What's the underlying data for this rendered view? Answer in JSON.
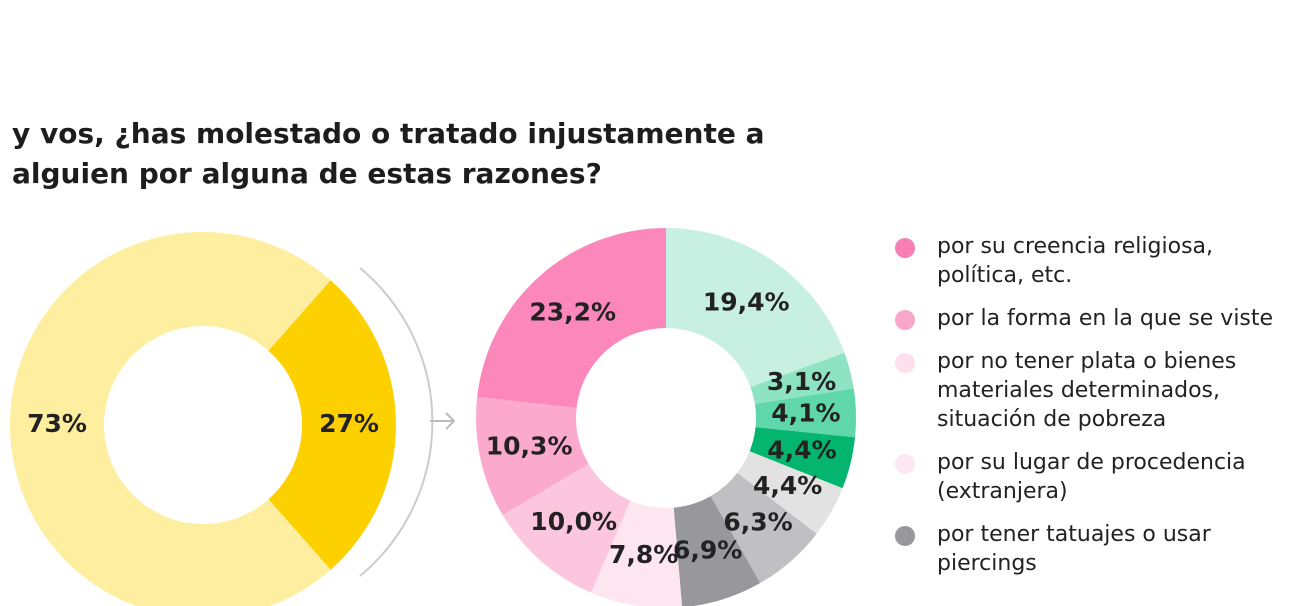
{
  "chart_data": [
    {
      "type": "pie",
      "title": "y vos, ¿has molestado o tratado injustamente a alguien por alguna de estas razones?",
      "values": [
        27,
        73
      ],
      "value_labels": [
        "27%",
        "73%"
      ],
      "colors": [
        "#fdd000",
        "#fdeea0"
      ]
    },
    {
      "type": "pie",
      "values": [
        19.4,
        3.1,
        4.1,
        4.4,
        4.4,
        6.3,
        6.9,
        7.8,
        10.0,
        10.3,
        23.2
      ],
      "value_labels": [
        "19,4%",
        "3,1%",
        "4,1%",
        "4,4%",
        "4,4%",
        "6,3%",
        "6,9%",
        "7,8%",
        "10,0%",
        "10,3%",
        "23,2%"
      ],
      "colors": [
        "#c8f0e2",
        "#8de3c4",
        "#5fd7ab",
        "#03b56e",
        "#e2e2e2",
        "#c0c0c2",
        "#98989c",
        "#fde6f0",
        "#fcc7de",
        "#fba9cd",
        "#fb87bb"
      ],
      "legend": [
        {
          "label": "por su creencia religiosa, política, etc.",
          "color": "#f77fb5"
        },
        {
          "label": "por la forma en la que se viste",
          "color": "#f9a6cb"
        },
        {
          "label": "por no tener plata o bienes materiales determinados, situación de pobreza",
          "color": "#fde0ec"
        },
        {
          "label": "por su lugar de procedencia (extranjera)",
          "color": "#fde8f1"
        },
        {
          "label": "por tener tatuajes o usar piercings",
          "color": "#98989c"
        }
      ]
    }
  ]
}
